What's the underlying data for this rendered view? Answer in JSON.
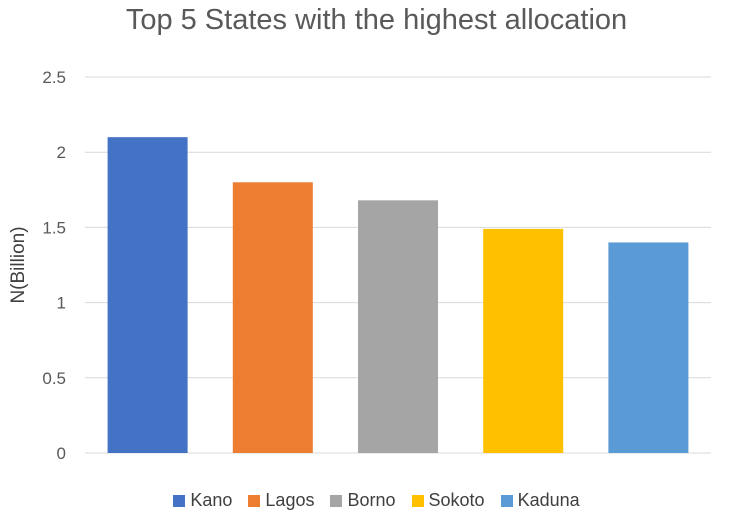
{
  "chart_data": {
    "type": "bar",
    "title": "Top 5 States with the highest allocation",
    "xlabel": "",
    "ylabel": "N(Billion)",
    "categories": [
      "Kano",
      "Lagos",
      "Borno",
      "Sokoto",
      "Kaduna"
    ],
    "values": [
      2.1,
      1.8,
      1.68,
      1.49,
      1.4
    ],
    "colors": [
      "#4472C4",
      "#ED7D31",
      "#A5A5A5",
      "#FFC000",
      "#5B9BD5"
    ],
    "ylim": [
      0,
      2.5
    ],
    "yticks": [
      "0",
      "0.5",
      "1",
      "1.5",
      "2",
      "2.5"
    ],
    "grid": true,
    "legend_position": "bottom"
  }
}
